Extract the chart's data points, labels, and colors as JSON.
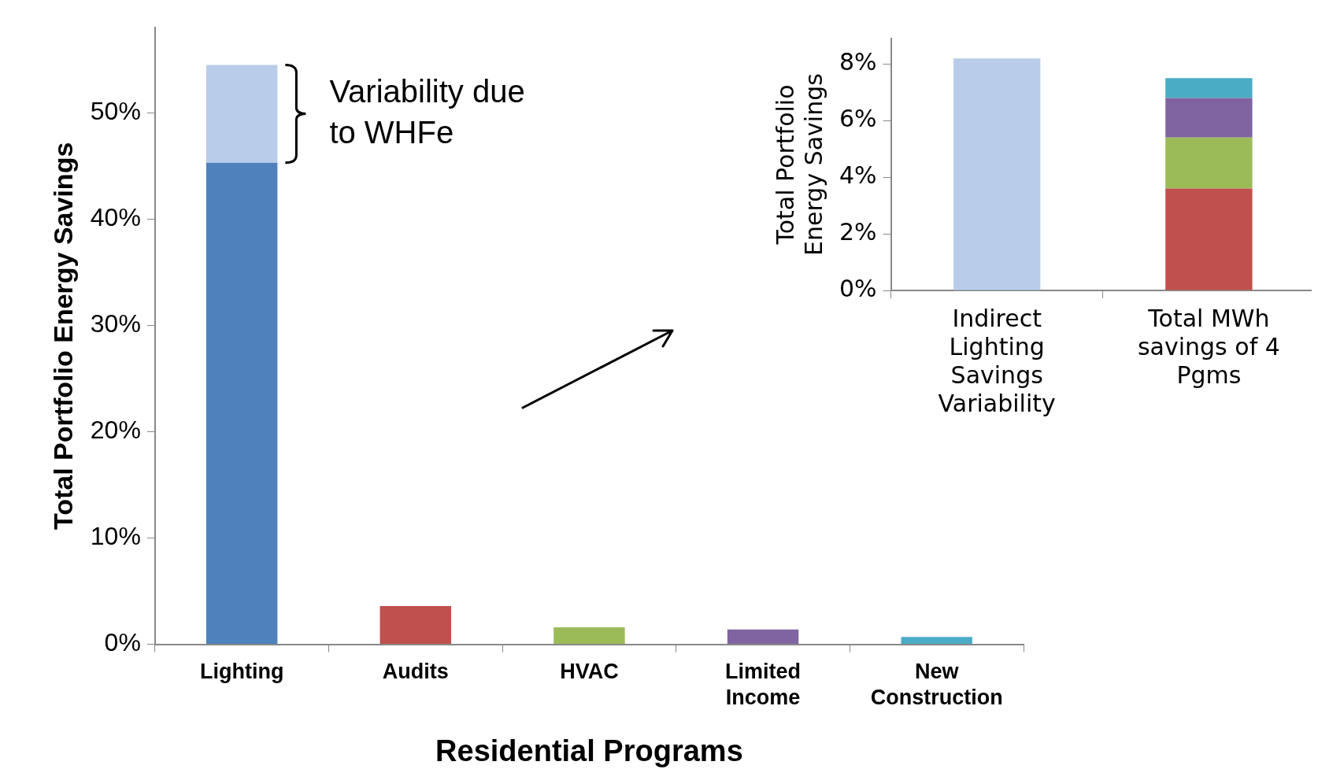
{
  "chart_data": [
    {
      "type": "bar",
      "xlabel": "Residential Programs",
      "ylabel": "Total Portfolio Energy Savings",
      "categories": [
        "Lighting",
        "Audits",
        "HVAC",
        "Limited Income",
        "New Construction"
      ],
      "stacked": true,
      "series": [
        {
          "colors": [
            "#4f81bd",
            "#c0504d",
            "#9bbb59",
            "#8064a2",
            "#4bacc6"
          ],
          "values": [
            45.3,
            3.6,
            1.6,
            1.4,
            0.7
          ]
        },
        {
          "color": "#b9cdea",
          "values": [
            9.2,
            null,
            null,
            null,
            null
          ]
        }
      ],
      "ylim": [
        0,
        58
      ],
      "yticks": [
        {
          "value": 0,
          "label": "0%"
        },
        {
          "value": 10,
          "label": "10%"
        },
        {
          "value": 20,
          "label": "20%"
        },
        {
          "value": 30,
          "label": "30%"
        },
        {
          "value": 40,
          "label": "40%"
        },
        {
          "value": 50,
          "label": "50%"
        }
      ],
      "grid": false,
      "legend": false,
      "annotations": [
        "Variability due to WHFe"
      ]
    },
    {
      "type": "bar",
      "ylabel": "Total Portfolio Energy Savings",
      "categories": [
        "Indirect Lighting Savings Variability",
        "Total MWh savings of 4 Pgms"
      ],
      "stacked": true,
      "series": [
        {
          "color": "#b9cdea",
          "values": [
            8.2,
            null
          ]
        },
        {
          "color": "#c0504d",
          "values": [
            null,
            3.6
          ]
        },
        {
          "color": "#9bbb59",
          "values": [
            null,
            1.8
          ]
        },
        {
          "color": "#8064a2",
          "values": [
            null,
            1.4
          ]
        },
        {
          "color": "#4bacc6",
          "values": [
            null,
            0.7
          ]
        }
      ],
      "ylim": [
        0,
        8.9
      ],
      "yticks": [
        {
          "value": 0,
          "label": "0%"
        },
        {
          "value": 2,
          "label": "2%"
        },
        {
          "value": 4,
          "label": "4%"
        },
        {
          "value": 6,
          "label": "6%"
        },
        {
          "value": 8,
          "label": "8%"
        }
      ],
      "grid": false,
      "legend": false
    }
  ]
}
